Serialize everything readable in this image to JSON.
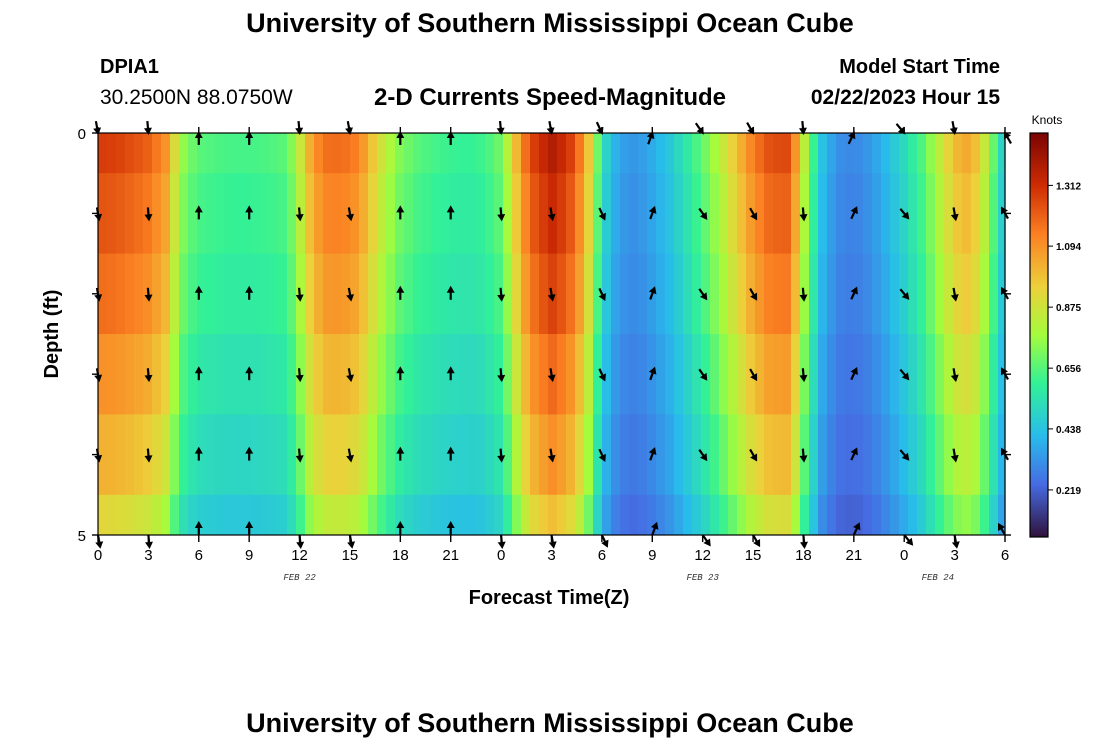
{
  "header": {
    "title": "University of Southern Mississippi Ocean Cube",
    "station_id": "DPIA1",
    "coords": "30.2500N  88.0750W",
    "subtitle": "2-D Currents Speed-Magnitude",
    "model_label": "Model Start Time",
    "model_time": "02/22/2023 Hour 15"
  },
  "footer": {
    "title": "University of Southern Mississippi Ocean Cube"
  },
  "chart_data": {
    "type": "heatmap",
    "title": "2-D Currents Speed-Magnitude",
    "xlabel": "Forecast Time(Z)",
    "ylabel": "Depth (ft)",
    "x_tick_labels": [
      "0",
      "3",
      "6",
      "9",
      "12",
      "15",
      "18",
      "21",
      "0",
      "3",
      "6",
      "9",
      "12",
      "15",
      "18",
      "21",
      "0",
      "3",
      "6"
    ],
    "x_range_hours": [
      0,
      54
    ],
    "date_labels": [
      {
        "text": "FEB 22",
        "hour": 12
      },
      {
        "text": "FEB 23",
        "hour": 36
      },
      {
        "text": "FEB 24",
        "hour": 50
      }
    ],
    "y_tick_labels": [
      "0",
      "5"
    ],
    "ylim": [
      0,
      5
    ],
    "depth_layers": 5,
    "colorbar": {
      "label": "Knots",
      "ticks": [
        0.219,
        0.438,
        0.656,
        0.875,
        1.094,
        1.312
      ],
      "tick_labels": [
        "0.219",
        "0.438",
        "0.656",
        "0.875",
        "1.094",
        "1.312"
      ],
      "range": [
        0.05,
        1.5
      ]
    },
    "speed_profile": {
      "hours": [
        0,
        1,
        2,
        3,
        4,
        4.4,
        4.8,
        5.2,
        6,
        7,
        8,
        9,
        10,
        11,
        11.5,
        12,
        12.3,
        12.8,
        13.5,
        14.5,
        15.5,
        16.2,
        17,
        18,
        19,
        20,
        21,
        22,
        23,
        24,
        24.6,
        25.2,
        26,
        27,
        28,
        29,
        29.6,
        30.2,
        31,
        32,
        33,
        34,
        35,
        36,
        37,
        38,
        39,
        40,
        41,
        41.5,
        42,
        43,
        44,
        45,
        46,
        47,
        48,
        49,
        50,
        51,
        52,
        53,
        54
      ],
      "speeds": [
        1.28,
        1.27,
        1.24,
        1.2,
        1.1,
        0.95,
        0.82,
        0.72,
        0.66,
        0.64,
        0.63,
        0.63,
        0.64,
        0.66,
        0.72,
        0.84,
        0.95,
        1.08,
        1.17,
        1.18,
        1.13,
        1.0,
        0.85,
        0.72,
        0.66,
        0.63,
        0.61,
        0.6,
        0.62,
        0.7,
        0.88,
        1.12,
        1.28,
        1.38,
        1.3,
        1.08,
        0.75,
        0.5,
        0.36,
        0.33,
        0.38,
        0.45,
        0.56,
        0.68,
        0.82,
        0.98,
        1.14,
        1.24,
        1.25,
        1.1,
        0.85,
        0.45,
        0.32,
        0.3,
        0.34,
        0.42,
        0.52,
        0.64,
        0.82,
        1.0,
        1.05,
        0.8,
        0.42
      ]
    },
    "depth_factors": [
      1.0,
      0.96,
      0.92,
      0.86,
      0.8,
      0.72
    ],
    "arrow_hours": [
      0,
      3,
      6,
      9,
      12,
      15,
      18,
      21,
      24,
      27,
      30,
      33,
      36,
      39,
      42,
      45,
      48,
      51,
      54
    ],
    "arrow_directions_deg": [
      170,
      175,
      0,
      0,
      175,
      170,
      0,
      0,
      175,
      170,
      155,
      20,
      145,
      150,
      175,
      25,
      140,
      170,
      330
    ],
    "arrow_depth_rows": [
      0,
      1,
      2,
      3,
      4,
      5
    ]
  }
}
